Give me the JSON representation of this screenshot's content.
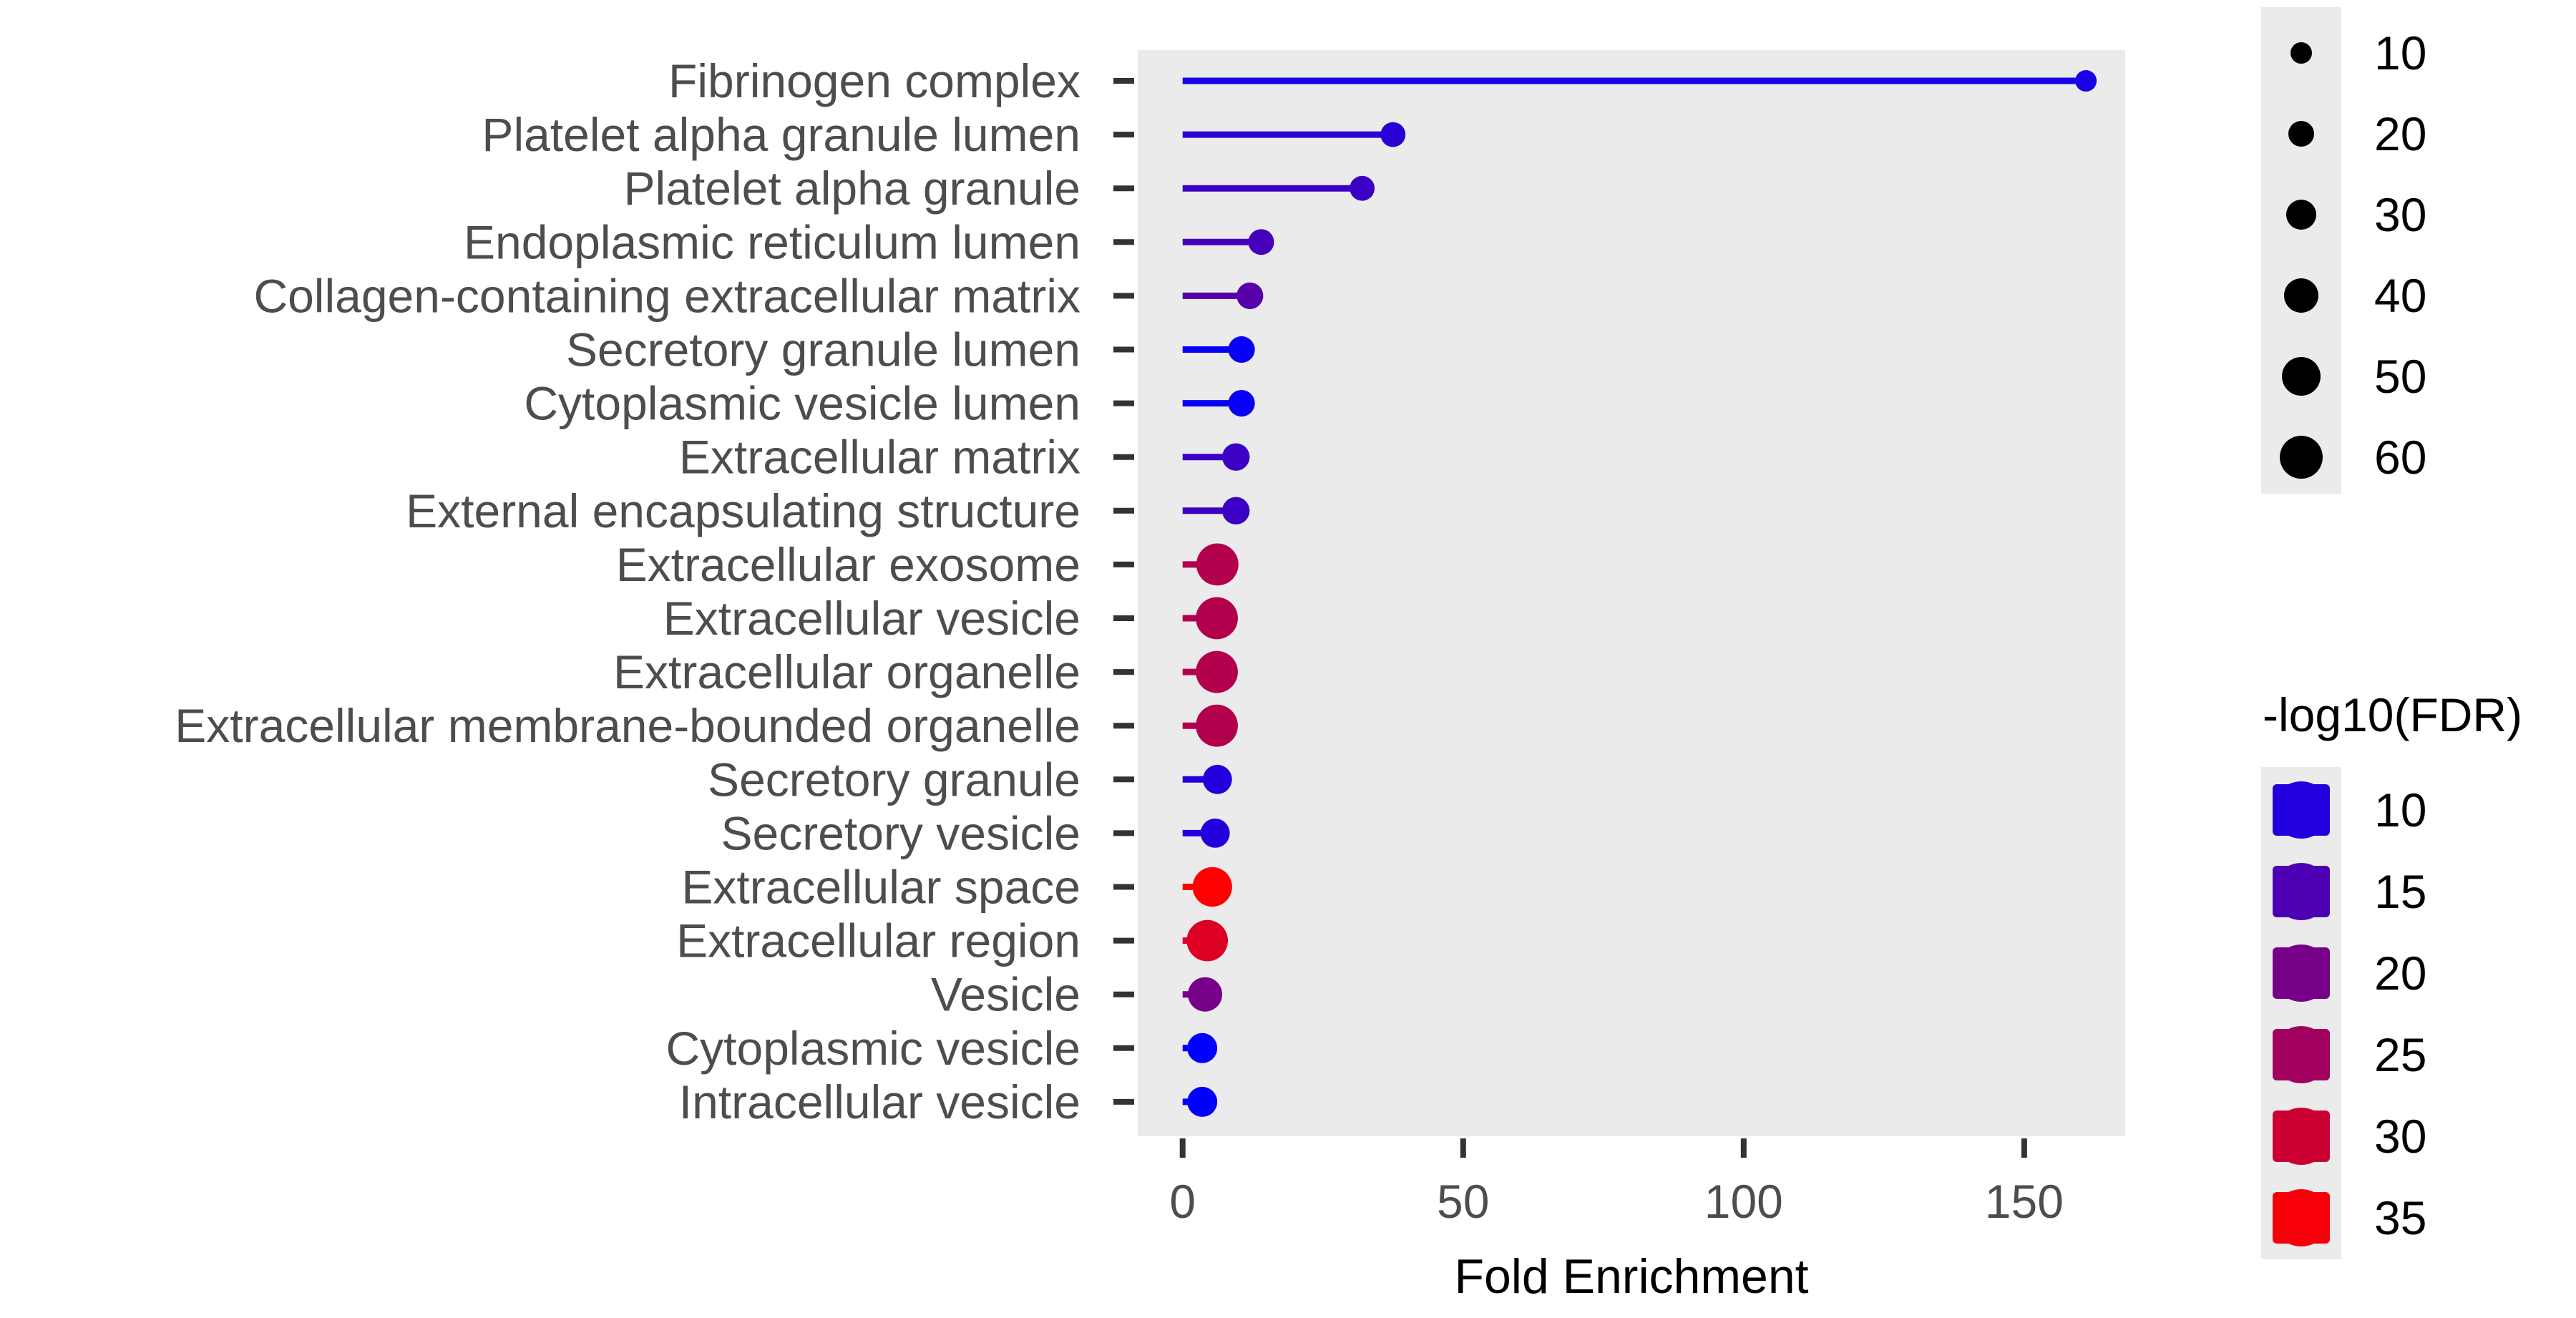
{
  "chart_data": {
    "type": "lollipop",
    "xlabel": "Fold Enrichment",
    "ylabel": "",
    "xlim": [
      -8,
      168
    ],
    "x_ticks": [
      0,
      50,
      100,
      150
    ],
    "grid": false,
    "categories": [
      "Fibrinogen complex",
      "Platelet alpha granule lumen",
      "Platelet alpha granule",
      "Endoplasmic reticulum lumen",
      "Collagen-containing extracellular matrix",
      "Secretory granule lumen",
      "Cytoplasmic vesicle lumen",
      "Extracellular matrix",
      "External encapsulating structure",
      "Extracellular exosome",
      "Extracellular vesicle",
      "Extracellular organelle",
      "Extracellular membrane-bounded organelle",
      "Secretory granule",
      "Secretory vesicle",
      "Extracellular space",
      "Extracellular region",
      "Vesicle",
      "Cytoplasmic vesicle",
      "Intracellular vesicle"
    ],
    "fold_enrichment": [
      161,
      37.5,
      32,
      14,
      12,
      10.5,
      10.5,
      9.5,
      9.5,
      6.2,
      6.1,
      6.1,
      6.1,
      6.2,
      5.8,
      5.3,
      4.4,
      4.0,
      3.5,
      3.5
    ],
    "count": [
      10,
      18,
      18,
      20,
      22,
      22,
      22,
      24,
      24,
      58,
      58,
      58,
      58,
      28,
      28,
      52,
      56,
      40,
      30,
      30
    ],
    "neg_log10_fdr": [
      9,
      11,
      13,
      14,
      16,
      7,
      7,
      13,
      13,
      27,
      27,
      27,
      27,
      10,
      10,
      36,
      32,
      20,
      6,
      6
    ],
    "size_legend": {
      "title": "",
      "values": [
        "10",
        "20",
        "30",
        "40",
        "50",
        "60"
      ],
      "position": "right-top"
    },
    "color_legend": {
      "title": "-log10(FDR)",
      "values": [
        "10",
        "15",
        "20",
        "25",
        "30",
        "35"
      ],
      "low_color": "#0000ff",
      "high_color": "#ff0000",
      "position": "right-bottom"
    },
    "panel_color": "#ebebeb"
  }
}
